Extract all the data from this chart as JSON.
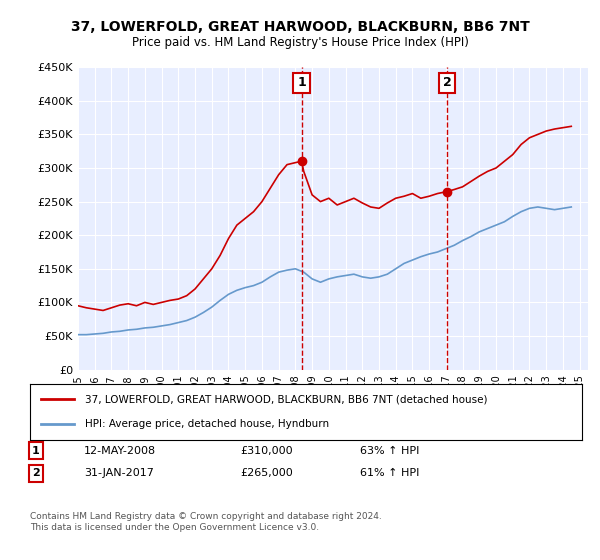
{
  "title": "37, LOWERFOLD, GREAT HARWOOD, BLACKBURN, BB6 7NT",
  "subtitle": "Price paid vs. HM Land Registry's House Price Index (HPI)",
  "ylabel": "",
  "background_color": "#f0f4ff",
  "plot_background": "#e8eeff",
  "red_line_color": "#cc0000",
  "blue_line_color": "#6699cc",
  "vline_color": "#cc0000",
  "ylim": [
    0,
    450000
  ],
  "yticks": [
    0,
    50000,
    100000,
    150000,
    200000,
    250000,
    300000,
    350000,
    400000,
    450000
  ],
  "ytick_labels": [
    "£0",
    "£50K",
    "£100K",
    "£150K",
    "£200K",
    "£250K",
    "£300K",
    "£350K",
    "£400K",
    "£450K"
  ],
  "xlim_start": 1995.0,
  "xlim_end": 2025.5,
  "marker1_x": 2008.37,
  "marker1_y": 310000,
  "marker1_label": "1",
  "marker1_date": "12-MAY-2008",
  "marker1_price": "£310,000",
  "marker1_hpi": "63% ↑ HPI",
  "marker2_x": 2017.08,
  "marker2_y": 265000,
  "marker2_label": "2",
  "marker2_date": "31-JAN-2017",
  "marker2_price": "£265,000",
  "marker2_hpi": "61% ↑ HPI",
  "legend_label_red": "37, LOWERFOLD, GREAT HARWOOD, BLACKBURN, BB6 7NT (detached house)",
  "legend_label_blue": "HPI: Average price, detached house, Hyndburn",
  "footer": "Contains HM Land Registry data © Crown copyright and database right 2024.\nThis data is licensed under the Open Government Licence v3.0.",
  "red_x": [
    1995.0,
    1995.5,
    1996.0,
    1996.5,
    1997.0,
    1997.5,
    1998.0,
    1998.5,
    1999.0,
    1999.5,
    2000.0,
    2000.5,
    2001.0,
    2001.5,
    2002.0,
    2002.5,
    2003.0,
    2003.5,
    2004.0,
    2004.5,
    2005.0,
    2005.5,
    2006.0,
    2006.5,
    2007.0,
    2007.5,
    2008.0,
    2008.37,
    2008.5,
    2009.0,
    2009.5,
    2010.0,
    2010.5,
    2011.0,
    2011.5,
    2012.0,
    2012.5,
    2013.0,
    2013.5,
    2014.0,
    2014.5,
    2015.0,
    2015.5,
    2016.0,
    2016.5,
    2017.08,
    2017.5,
    2018.0,
    2018.5,
    2019.0,
    2019.5,
    2020.0,
    2020.5,
    2021.0,
    2021.5,
    2022.0,
    2022.5,
    2023.0,
    2023.5,
    2024.0,
    2024.5
  ],
  "red_y": [
    95000,
    92000,
    90000,
    88000,
    92000,
    96000,
    98000,
    95000,
    100000,
    97000,
    100000,
    103000,
    105000,
    110000,
    120000,
    135000,
    150000,
    170000,
    195000,
    215000,
    225000,
    235000,
    250000,
    270000,
    290000,
    305000,
    308000,
    310000,
    295000,
    260000,
    250000,
    255000,
    245000,
    250000,
    255000,
    248000,
    242000,
    240000,
    248000,
    255000,
    258000,
    262000,
    255000,
    258000,
    262000,
    265000,
    268000,
    272000,
    280000,
    288000,
    295000,
    300000,
    310000,
    320000,
    335000,
    345000,
    350000,
    355000,
    358000,
    360000,
    362000
  ],
  "blue_x": [
    1995.0,
    1995.5,
    1996.0,
    1996.5,
    1997.0,
    1997.5,
    1998.0,
    1998.5,
    1999.0,
    1999.5,
    2000.0,
    2000.5,
    2001.0,
    2001.5,
    2002.0,
    2002.5,
    2003.0,
    2003.5,
    2004.0,
    2004.5,
    2005.0,
    2005.5,
    2006.0,
    2006.5,
    2007.0,
    2007.5,
    2008.0,
    2008.5,
    2009.0,
    2009.5,
    2010.0,
    2010.5,
    2011.0,
    2011.5,
    2012.0,
    2012.5,
    2013.0,
    2013.5,
    2014.0,
    2014.5,
    2015.0,
    2015.5,
    2016.0,
    2016.5,
    2017.0,
    2017.5,
    2018.0,
    2018.5,
    2019.0,
    2019.5,
    2020.0,
    2020.5,
    2021.0,
    2021.5,
    2022.0,
    2022.5,
    2023.0,
    2023.5,
    2024.0,
    2024.5
  ],
  "blue_y": [
    52000,
    52000,
    53000,
    54000,
    56000,
    57000,
    59000,
    60000,
    62000,
    63000,
    65000,
    67000,
    70000,
    73000,
    78000,
    85000,
    93000,
    103000,
    112000,
    118000,
    122000,
    125000,
    130000,
    138000,
    145000,
    148000,
    150000,
    145000,
    135000,
    130000,
    135000,
    138000,
    140000,
    142000,
    138000,
    136000,
    138000,
    142000,
    150000,
    158000,
    163000,
    168000,
    172000,
    175000,
    180000,
    185000,
    192000,
    198000,
    205000,
    210000,
    215000,
    220000,
    228000,
    235000,
    240000,
    242000,
    240000,
    238000,
    240000,
    242000
  ]
}
